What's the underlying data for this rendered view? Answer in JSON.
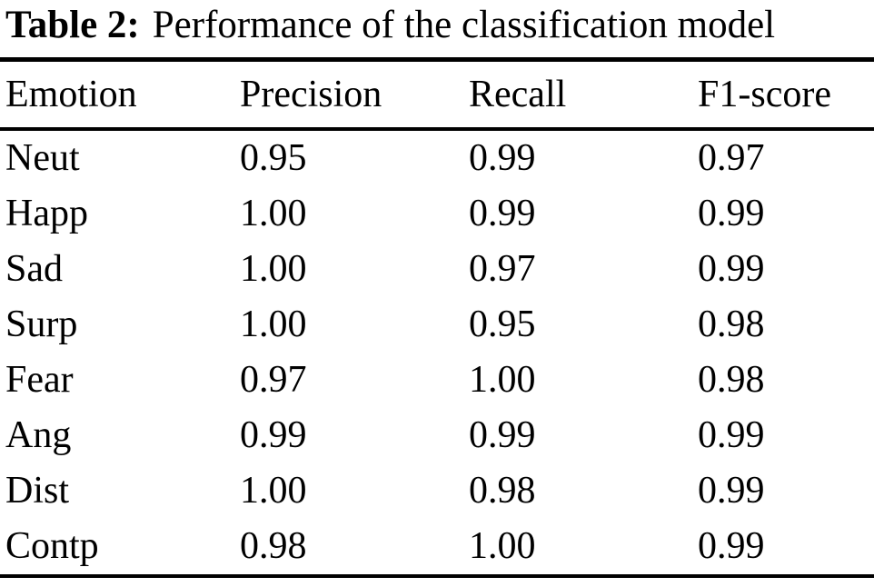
{
  "caption": {
    "label": "Table 2:",
    "text": "Performance of the classification model"
  },
  "table": {
    "headers": [
      "Emotion",
      "Precision",
      "Recall",
      "F1-score"
    ],
    "rows": [
      [
        "Neut",
        "0.95",
        "0.99",
        "0.97"
      ],
      [
        "Happ",
        "1.00",
        "0.99",
        "0.99"
      ],
      [
        "Sad",
        "1.00",
        "0.97",
        "0.99"
      ],
      [
        "Surp",
        "1.00",
        "0.95",
        "0.98"
      ],
      [
        "Fear",
        "0.97",
        "1.00",
        "0.98"
      ],
      [
        "Ang",
        "0.99",
        "0.99",
        "0.99"
      ],
      [
        "Dist",
        "1.00",
        "0.98",
        "0.99"
      ],
      [
        "Contp",
        "0.98",
        "1.00",
        "0.99"
      ]
    ]
  }
}
